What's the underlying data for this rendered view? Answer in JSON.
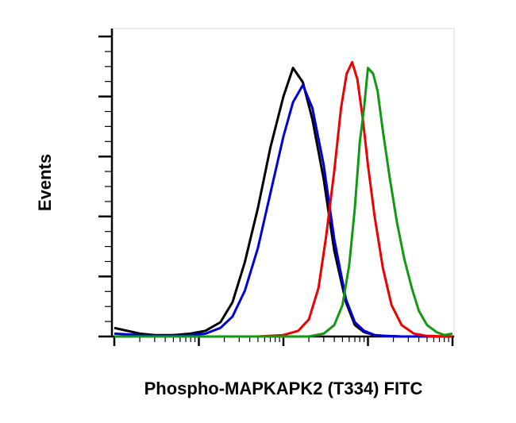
{
  "chart_data": {
    "type": "line",
    "title": "",
    "xlabel": "Phospho-MAPKAPK2 (T334) FITC",
    "ylabel": "Events",
    "x_scale": "log",
    "xlim": [
      1,
      10000
    ],
    "ylim": [
      0,
      100
    ],
    "grid": false,
    "legend": "none",
    "series": [
      {
        "color": "#000000",
        "x": [
          1,
          2,
          3,
          5,
          8,
          12,
          18,
          25,
          35,
          50,
          70,
          100,
          130,
          170,
          220,
          300,
          400,
          550,
          700,
          900,
          1200,
          1600,
          2500,
          5000,
          10000
        ],
        "y": [
          3,
          1,
          0.5,
          0.5,
          1,
          2,
          5,
          12,
          26,
          45,
          66,
          84,
          94,
          89,
          76,
          55,
          30,
          12,
          4,
          1.5,
          0.5,
          0.2,
          0,
          0,
          0
        ]
      },
      {
        "color": "#0000dd",
        "x": [
          1,
          2,
          3,
          5,
          8,
          12,
          18,
          25,
          35,
          50,
          70,
          100,
          130,
          170,
          220,
          300,
          400,
          550,
          700,
          900,
          1200,
          1600,
          2500,
          5000,
          10000
        ],
        "y": [
          1,
          0.5,
          0.2,
          0.2,
          0.5,
          1,
          3,
          7,
          16,
          31,
          50,
          70,
          82,
          88,
          80,
          60,
          34,
          13,
          5,
          2,
          0.5,
          0.2,
          0,
          0,
          0
        ]
      },
      {
        "color": "#ee0000",
        "x": [
          1,
          50,
          100,
          150,
          200,
          260,
          320,
          400,
          480,
          560,
          650,
          750,
          870,
          1000,
          1200,
          1500,
          1900,
          2500,
          3500,
          5000,
          10000
        ],
        "y": [
          0,
          0,
          0.5,
          2,
          6,
          17,
          35,
          58,
          80,
          92,
          96,
          90,
          76,
          60,
          42,
          24,
          11,
          4,
          1,
          0.2,
          0
        ]
      },
      {
        "color": "#119911",
        "x": [
          1,
          200,
          300,
          400,
          500,
          600,
          700,
          800,
          900,
          1000,
          1150,
          1300,
          1500,
          1800,
          2200,
          2700,
          3300,
          4000,
          5000,
          6500,
          8000,
          10000
        ],
        "y": [
          0,
          0,
          1,
          4,
          11,
          25,
          45,
          68,
          80,
          94,
          92,
          86,
          72,
          56,
          40,
          27,
          17,
          9,
          4,
          1.5,
          0.5,
          1
        ]
      }
    ]
  }
}
